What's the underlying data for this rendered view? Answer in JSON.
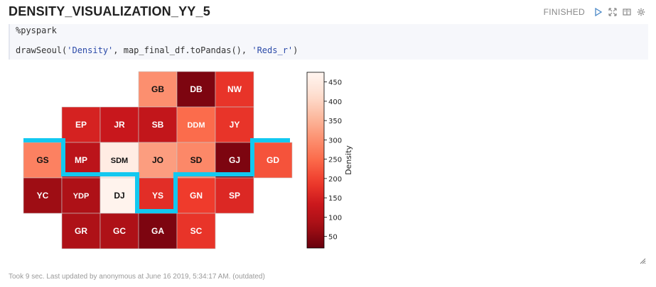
{
  "paragraph": {
    "title": "DENSITY_VISUALIZATION_YY_5",
    "status": "FINISHED"
  },
  "toolbar_icons": [
    "run-icon",
    "expand-icon",
    "book-icon",
    "settings-icon"
  ],
  "code": {
    "line1": "%pyspark",
    "line2_prefix": "drawSeoul(",
    "arg1": "'Density'",
    "middle": ", map_final_df.toPandas(), ",
    "arg2": "'Reds_r'",
    "line2_suffix": ")"
  },
  "footer": "Took 9 sec. Last updated by anonymous at June 16 2019, 5:34:17 AM. (outdated)",
  "chart_data": {
    "type": "heatmap",
    "colormap": "Reds_r",
    "colorbar_label": "Density",
    "colorbar_range": [
      20,
      475
    ],
    "colorbar_ticks": [
      50,
      100,
      150,
      200,
      250,
      300,
      350,
      400,
      450
    ],
    "grid_columns": 7,
    "grid_rows": 5,
    "cells": [
      {
        "label": "GB",
        "row": 0,
        "col": 3,
        "value": 300
      },
      {
        "label": "DB",
        "row": 0,
        "col": 4,
        "value": 40
      },
      {
        "label": "NW",
        "row": 0,
        "col": 5,
        "value": 180
      },
      {
        "label": "EP",
        "row": 1,
        "col": 1,
        "value": 150
      },
      {
        "label": "JR",
        "row": 1,
        "col": 2,
        "value": 130
      },
      {
        "label": "SB",
        "row": 1,
        "col": 3,
        "value": 120
      },
      {
        "label": "DDM",
        "row": 1,
        "col": 4,
        "value": 250
      },
      {
        "label": "JY",
        "row": 1,
        "col": 5,
        "value": 180
      },
      {
        "label": "GS",
        "row": 2,
        "col": 0,
        "value": 280
      },
      {
        "label": "MP",
        "row": 2,
        "col": 1,
        "value": 110
      },
      {
        "label": "SDM",
        "row": 2,
        "col": 2,
        "value": 450
      },
      {
        "label": "JO",
        "row": 2,
        "col": 3,
        "value": 320
      },
      {
        "label": "SD",
        "row": 2,
        "col": 4,
        "value": 290
      },
      {
        "label": "GJ",
        "row": 2,
        "col": 5,
        "value": 40
      },
      {
        "label": "GD",
        "row": 2,
        "col": 6,
        "value": 220
      },
      {
        "label": "YC",
        "row": 3,
        "col": 0,
        "value": 70
      },
      {
        "label": "YDP",
        "row": 3,
        "col": 1,
        "value": 90
      },
      {
        "label": "DJ",
        "row": 3,
        "col": 2,
        "value": 470
      },
      {
        "label": "YS",
        "row": 3,
        "col": 3,
        "value": 170
      },
      {
        "label": "GN",
        "row": 3,
        "col": 4,
        "value": 190
      },
      {
        "label": "SP",
        "row": 3,
        "col": 5,
        "value": 160
      },
      {
        "label": "GR",
        "row": 4,
        "col": 1,
        "value": 90
      },
      {
        "label": "GC",
        "row": 4,
        "col": 2,
        "value": 90
      },
      {
        "label": "GA",
        "row": 4,
        "col": 3,
        "value": 40
      },
      {
        "label": "SC",
        "row": 4,
        "col": 4,
        "value": 180
      }
    ],
    "boundary_color": "#12c8f0"
  }
}
